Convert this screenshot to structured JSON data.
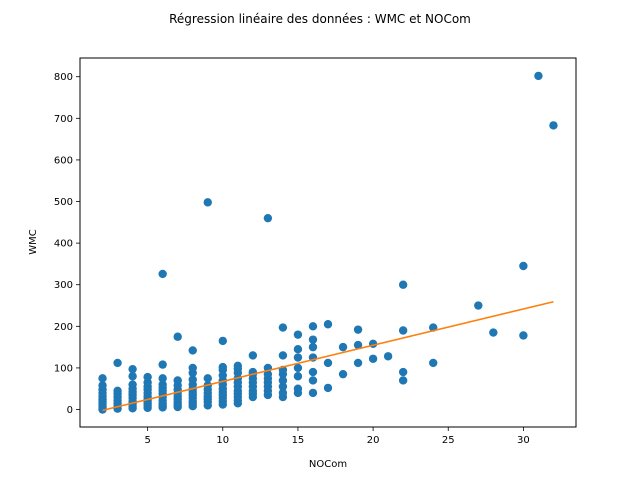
{
  "chart_data": {
    "type": "scatter",
    "title": "Régression linéaire des données : WMC et NOCom",
    "xlabel": "NOCom",
    "ylabel": "WMC",
    "xlim": [
      0.5,
      33.5
    ],
    "ylim": [
      -42,
      845
    ],
    "xticks": [
      5,
      10,
      15,
      20,
      25,
      30
    ],
    "yticks": [
      0,
      100,
      200,
      300,
      400,
      500,
      600,
      700,
      800
    ],
    "grid": false,
    "colors": {
      "points": "#1f77b4",
      "line": "#ff7f0e"
    },
    "series": [
      {
        "type": "scatter",
        "points": [
          [
            2,
            0
          ],
          [
            2,
            5
          ],
          [
            2,
            10
          ],
          [
            2,
            15
          ],
          [
            2,
            20
          ],
          [
            2,
            25
          ],
          [
            2,
            32
          ],
          [
            2,
            40
          ],
          [
            2,
            48
          ],
          [
            2,
            58
          ],
          [
            2,
            75
          ],
          [
            3,
            2
          ],
          [
            3,
            8
          ],
          [
            3,
            15
          ],
          [
            3,
            22
          ],
          [
            3,
            30
          ],
          [
            3,
            38
          ],
          [
            3,
            45
          ],
          [
            3,
            112
          ],
          [
            4,
            3
          ],
          [
            4,
            8
          ],
          [
            4,
            14
          ],
          [
            4,
            20
          ],
          [
            4,
            28
          ],
          [
            4,
            35
          ],
          [
            4,
            42
          ],
          [
            4,
            50
          ],
          [
            4,
            60
          ],
          [
            4,
            80
          ],
          [
            4,
            97
          ],
          [
            5,
            4
          ],
          [
            5,
            10
          ],
          [
            5,
            15
          ],
          [
            5,
            20
          ],
          [
            5,
            25
          ],
          [
            5,
            32
          ],
          [
            5,
            40
          ],
          [
            5,
            48
          ],
          [
            5,
            55
          ],
          [
            5,
            65
          ],
          [
            5,
            78
          ],
          [
            6,
            5
          ],
          [
            6,
            10
          ],
          [
            6,
            15
          ],
          [
            6,
            22
          ],
          [
            6,
            30
          ],
          [
            6,
            38
          ],
          [
            6,
            45
          ],
          [
            6,
            52
          ],
          [
            6,
            60
          ],
          [
            6,
            75
          ],
          [
            6,
            108
          ],
          [
            6,
            326
          ],
          [
            7,
            6
          ],
          [
            7,
            12
          ],
          [
            7,
            18
          ],
          [
            7,
            25
          ],
          [
            7,
            32
          ],
          [
            7,
            40
          ],
          [
            7,
            48
          ],
          [
            7,
            58
          ],
          [
            7,
            70
          ],
          [
            7,
            175
          ],
          [
            8,
            8
          ],
          [
            8,
            14
          ],
          [
            8,
            20
          ],
          [
            8,
            28
          ],
          [
            8,
            35
          ],
          [
            8,
            42
          ],
          [
            8,
            50
          ],
          [
            8,
            60
          ],
          [
            8,
            72
          ],
          [
            8,
            88
          ],
          [
            8,
            100
          ],
          [
            8,
            142
          ],
          [
            9,
            10
          ],
          [
            9,
            18
          ],
          [
            9,
            25
          ],
          [
            9,
            32
          ],
          [
            9,
            40
          ],
          [
            9,
            48
          ],
          [
            9,
            58
          ],
          [
            9,
            75
          ],
          [
            9,
            498
          ],
          [
            10,
            12
          ],
          [
            10,
            20
          ],
          [
            10,
            28
          ],
          [
            10,
            35
          ],
          [
            10,
            42
          ],
          [
            10,
            50
          ],
          [
            10,
            60
          ],
          [
            10,
            70
          ],
          [
            10,
            82
          ],
          [
            10,
            95
          ],
          [
            10,
            102
          ],
          [
            10,
            165
          ],
          [
            11,
            15
          ],
          [
            11,
            22
          ],
          [
            11,
            30
          ],
          [
            11,
            38
          ],
          [
            11,
            45
          ],
          [
            11,
            55
          ],
          [
            11,
            65
          ],
          [
            11,
            75
          ],
          [
            11,
            88
          ],
          [
            11,
            98
          ],
          [
            11,
            105
          ],
          [
            12,
            30
          ],
          [
            12,
            38
          ],
          [
            12,
            45
          ],
          [
            12,
            55
          ],
          [
            12,
            65
          ],
          [
            12,
            75
          ],
          [
            12,
            85
          ],
          [
            12,
            90
          ],
          [
            12,
            130
          ],
          [
            13,
            35
          ],
          [
            13,
            45
          ],
          [
            13,
            55
          ],
          [
            13,
            65
          ],
          [
            13,
            75
          ],
          [
            13,
            85
          ],
          [
            13,
            100
          ],
          [
            13,
            460
          ],
          [
            14,
            30
          ],
          [
            14,
            40
          ],
          [
            14,
            55
          ],
          [
            14,
            70
          ],
          [
            14,
            85
          ],
          [
            14,
            95
          ],
          [
            14,
            130
          ],
          [
            14,
            197
          ],
          [
            15,
            40
          ],
          [
            15,
            50
          ],
          [
            15,
            80
          ],
          [
            15,
            100
          ],
          [
            15,
            125
          ],
          [
            15,
            145
          ],
          [
            15,
            180
          ],
          [
            16,
            40
          ],
          [
            16,
            70
          ],
          [
            16,
            90
          ],
          [
            16,
            125
          ],
          [
            16,
            150
          ],
          [
            16,
            168
          ],
          [
            16,
            200
          ],
          [
            17,
            52
          ],
          [
            17,
            112
          ],
          [
            17,
            205
          ],
          [
            18,
            85
          ],
          [
            18,
            150
          ],
          [
            19,
            112
          ],
          [
            19,
            155
          ],
          [
            19,
            192
          ],
          [
            20,
            122
          ],
          [
            20,
            158
          ],
          [
            21,
            128
          ],
          [
            22,
            70
          ],
          [
            22,
            90
          ],
          [
            22,
            190
          ],
          [
            22,
            300
          ],
          [
            24,
            112
          ],
          [
            24,
            197
          ],
          [
            27,
            250
          ],
          [
            28,
            185
          ],
          [
            30,
            178
          ],
          [
            30,
            345
          ],
          [
            31,
            802
          ],
          [
            32,
            683
          ]
        ]
      },
      {
        "type": "line",
        "x": [
          2,
          32
        ],
        "y": [
          -2,
          259
        ]
      }
    ]
  }
}
